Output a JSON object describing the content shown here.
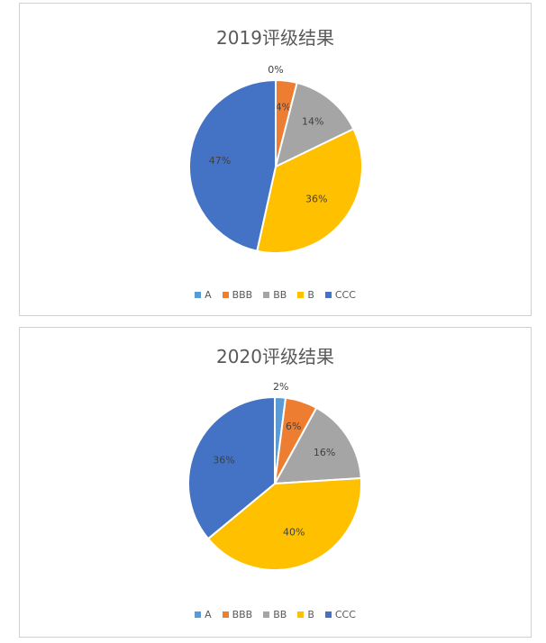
{
  "colors": {
    "A": "#5b9bd5",
    "BBB": "#ed7d31",
    "BB": "#a5a5a5",
    "B": "#ffc000",
    "CCC": "#4472c4"
  },
  "chart_data": [
    {
      "type": "pie",
      "title": "2019评级结果",
      "categories": [
        "A",
        "BBB",
        "BB",
        "B",
        "CCC"
      ],
      "values": [
        0,
        4,
        14,
        36,
        47
      ],
      "labels": [
        "0%",
        "4%",
        "14%",
        "36%",
        "47%"
      ],
      "legend_position": "bottom"
    },
    {
      "type": "pie",
      "title": "2020评级结果",
      "categories": [
        "A",
        "BBB",
        "BB",
        "B",
        "CCC"
      ],
      "values": [
        2,
        6,
        16,
        40,
        36
      ],
      "labels": [
        "2%",
        "6%",
        "16%",
        "40%",
        "36%"
      ],
      "legend_position": "bottom"
    }
  ]
}
